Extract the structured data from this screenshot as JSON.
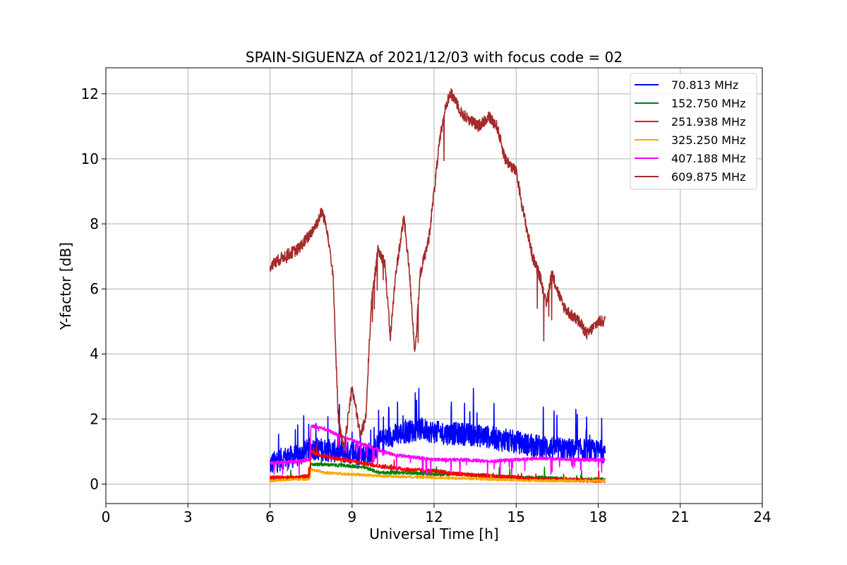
{
  "chart_data": {
    "type": "line",
    "title": "SPAIN-SIGUENZA of 2021/12/03 with focus code = 02",
    "xlabel": "Universal Time [h]",
    "ylabel": "Y-factor [dB]",
    "xlim": [
      0,
      24
    ],
    "ylim": [
      -0.6,
      12.8
    ],
    "xticks": [
      0,
      3,
      6,
      9,
      12,
      15,
      18,
      21,
      24
    ],
    "yticks": [
      0,
      2,
      4,
      6,
      8,
      10,
      12
    ],
    "grid": true,
    "legend_position": "top-right",
    "series": [
      {
        "name": " 70.813 MHz",
        "color": "#0000ff",
        "base": [
          [
            6.0,
            0.6
          ],
          [
            6.5,
            0.8
          ],
          [
            7.0,
            0.85
          ],
          [
            7.5,
            1.1
          ],
          [
            8.0,
            1.05
          ],
          [
            8.5,
            1.0
          ],
          [
            9.0,
            0.95
          ],
          [
            9.5,
            0.9
          ],
          [
            9.8,
            1.0
          ],
          [
            10.0,
            1.3
          ],
          [
            10.5,
            1.5
          ],
          [
            11.0,
            1.6
          ],
          [
            11.5,
            1.7
          ],
          [
            12.0,
            1.6
          ],
          [
            12.5,
            1.55
          ],
          [
            13.0,
            1.55
          ],
          [
            13.5,
            1.5
          ],
          [
            14.0,
            1.45
          ],
          [
            14.5,
            1.35
          ],
          [
            15.0,
            1.3
          ],
          [
            15.5,
            1.2
          ],
          [
            16.0,
            1.15
          ],
          [
            16.5,
            1.1
          ],
          [
            17.0,
            1.05
          ],
          [
            17.5,
            1.05
          ],
          [
            18.0,
            1.0
          ],
          [
            18.25,
            1.0
          ]
        ],
        "noise": 0.35,
        "spike_rate": 0.05,
        "spike_amp": 1.2
      },
      {
        "name": "152.750 MHz",
        "color": "#008000",
        "base": [
          [
            6.0,
            0.15
          ],
          [
            7.0,
            0.2
          ],
          [
            7.45,
            0.2
          ],
          [
            7.5,
            0.6
          ],
          [
            8.0,
            0.6
          ],
          [
            9.0,
            0.55
          ],
          [
            9.5,
            0.5
          ],
          [
            10.0,
            0.35
          ],
          [
            11.0,
            0.35
          ],
          [
            12.0,
            0.3
          ],
          [
            13.0,
            0.3
          ],
          [
            14.0,
            0.25
          ],
          [
            15.0,
            0.2
          ],
          [
            16.0,
            0.2
          ],
          [
            17.0,
            0.15
          ],
          [
            18.25,
            0.15
          ]
        ],
        "noise": 0.05,
        "spike_rate": 0.01,
        "spike_amp": 0.3
      },
      {
        "name": "251.938 MHz",
        "color": "#ff0000",
        "base": [
          [
            6.0,
            0.2
          ],
          [
            7.0,
            0.2
          ],
          [
            7.45,
            0.25
          ],
          [
            7.5,
            1.0
          ],
          [
            8.0,
            0.85
          ],
          [
            9.0,
            0.7
          ],
          [
            10.0,
            0.55
          ],
          [
            11.0,
            0.45
          ],
          [
            12.0,
            0.4
          ],
          [
            13.0,
            0.3
          ],
          [
            14.0,
            0.25
          ],
          [
            15.0,
            0.2
          ],
          [
            16.0,
            0.15
          ],
          [
            17.0,
            0.12
          ],
          [
            18.25,
            0.1
          ]
        ],
        "noise": 0.06,
        "spike_rate": 0.01,
        "spike_amp": 0.3
      },
      {
        "name": "325.250 MHz",
        "color": "#ffa500",
        "base": [
          [
            6.0,
            0.1
          ],
          [
            7.0,
            0.15
          ],
          [
            7.45,
            0.15
          ],
          [
            7.5,
            0.45
          ],
          [
            8.0,
            0.35
          ],
          [
            9.0,
            0.3
          ],
          [
            10.0,
            0.25
          ],
          [
            11.0,
            0.22
          ],
          [
            12.0,
            0.2
          ],
          [
            13.0,
            0.18
          ],
          [
            14.0,
            0.15
          ],
          [
            15.0,
            0.12
          ],
          [
            16.0,
            0.1
          ],
          [
            17.0,
            0.1
          ],
          [
            18.25,
            0.1
          ]
        ],
        "noise": 0.04,
        "spike_rate": 0.005,
        "spike_amp": 0.15
      },
      {
        "name": "407.188 MHz",
        "color": "#ff00ff",
        "base": [
          [
            6.0,
            0.65
          ],
          [
            7.0,
            0.7
          ],
          [
            7.45,
            0.75
          ],
          [
            7.5,
            1.8
          ],
          [
            8.0,
            1.7
          ],
          [
            8.5,
            1.5
          ],
          [
            9.0,
            1.35
          ],
          [
            9.5,
            1.2
          ],
          [
            10.0,
            1.05
          ],
          [
            10.5,
            0.9
          ],
          [
            11.0,
            0.85
          ],
          [
            12.0,
            0.75
          ],
          [
            13.0,
            0.75
          ],
          [
            14.0,
            0.7
          ],
          [
            15.0,
            0.75
          ],
          [
            16.0,
            0.8
          ],
          [
            17.0,
            0.75
          ],
          [
            18.25,
            0.75
          ]
        ],
        "noise": 0.05,
        "spike_rate": 0.04,
        "spike_amp": -0.5
      },
      {
        "name": "609.875 MHz",
        "color": "#a52a2a",
        "base": [
          [
            6.0,
            6.7
          ],
          [
            6.5,
            7.0
          ],
          [
            7.0,
            7.2
          ],
          [
            7.4,
            7.6
          ],
          [
            7.7,
            8.0
          ],
          [
            7.9,
            8.4
          ],
          [
            8.1,
            7.8
          ],
          [
            8.3,
            6.5
          ],
          [
            8.5,
            2.0
          ],
          [
            8.7,
            1.0
          ],
          [
            9.0,
            3.0
          ],
          [
            9.3,
            1.5
          ],
          [
            9.5,
            2.0
          ],
          [
            9.7,
            5.5
          ],
          [
            9.95,
            7.2
          ],
          [
            10.2,
            6.8
          ],
          [
            10.4,
            4.5
          ],
          [
            10.6,
            6.5
          ],
          [
            10.9,
            8.2
          ],
          [
            11.1,
            6.5
          ],
          [
            11.3,
            4.0
          ],
          [
            11.5,
            6.5
          ],
          [
            11.8,
            7.5
          ],
          [
            12.0,
            9.0
          ],
          [
            12.2,
            10.5
          ],
          [
            12.4,
            11.6
          ],
          [
            12.6,
            12.0
          ],
          [
            12.8,
            11.8
          ],
          [
            13.0,
            11.4
          ],
          [
            13.3,
            11.2
          ],
          [
            13.6,
            11.0
          ],
          [
            14.0,
            11.3
          ],
          [
            14.3,
            11.0
          ],
          [
            14.6,
            10.0
          ],
          [
            15.0,
            9.6
          ],
          [
            15.3,
            8.2
          ],
          [
            15.6,
            7.0
          ],
          [
            15.9,
            6.3
          ],
          [
            16.1,
            5.5
          ],
          [
            16.3,
            6.5
          ],
          [
            16.5,
            6.0
          ],
          [
            16.7,
            5.5
          ],
          [
            17.0,
            5.2
          ],
          [
            17.3,
            5.0
          ],
          [
            17.6,
            4.6
          ],
          [
            18.0,
            5.0
          ],
          [
            18.25,
            5.0
          ]
        ],
        "noise": 0.18,
        "spike_rate": 0.01,
        "spike_amp": -1.5
      }
    ]
  }
}
